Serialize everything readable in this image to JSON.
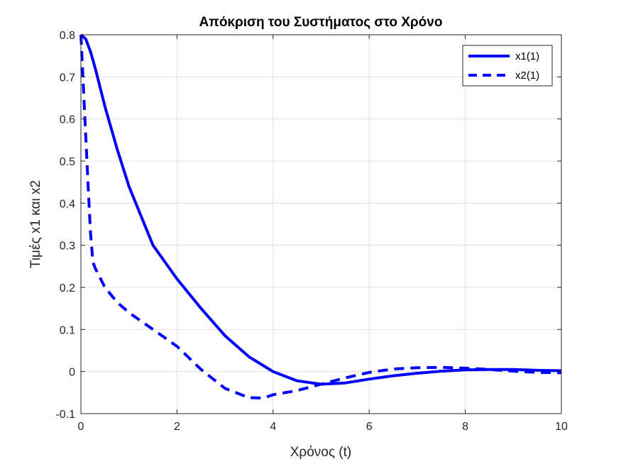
{
  "chart_data": {
    "type": "line",
    "title": "Απόκριση του Συστήματος στο Χρόνο",
    "xlabel": "Χρόνος (t)",
    "ylabel": "Τιμές x1 και x2",
    "xlim": [
      0,
      10
    ],
    "ylim": [
      -0.1,
      0.8
    ],
    "xticks": [
      0,
      2,
      4,
      6,
      8,
      10
    ],
    "yticks": [
      -0.1,
      0,
      0.1,
      0.2,
      0.3,
      0.4,
      0.5,
      0.6,
      0.7,
      0.8
    ],
    "xtick_labels": [
      "0",
      "2",
      "4",
      "6",
      "8",
      "10"
    ],
    "ytick_labels": [
      "-0.1",
      "0",
      "0.1",
      "0.2",
      "0.3",
      "0.4",
      "0.5",
      "0.6",
      "0.7",
      "0.8"
    ],
    "grid": true,
    "legend_position": "top-right",
    "series": [
      {
        "name": "x1(1)",
        "style": "solid",
        "color": "#0000ff",
        "x": [
          0,
          0.1,
          0.2,
          0.3,
          0.5,
          0.75,
          1.0,
          1.25,
          1.5,
          1.75,
          2.0,
          2.5,
          3.0,
          3.5,
          4.0,
          4.5,
          5.0,
          5.5,
          6.0,
          6.5,
          7.0,
          7.5,
          8.0,
          8.5,
          9.0,
          9.5,
          10.0
        ],
        "y": [
          0.8,
          0.79,
          0.76,
          0.72,
          0.63,
          0.53,
          0.44,
          0.37,
          0.3,
          0.26,
          0.22,
          0.15,
          0.085,
          0.035,
          0.0,
          -0.022,
          -0.03,
          -0.027,
          -0.018,
          -0.01,
          -0.004,
          0.001,
          0.004,
          0.005,
          0.005,
          0.003,
          0.002
        ]
      },
      {
        "name": "x2(1)",
        "style": "dashed",
        "color": "#0000ff",
        "x": [
          0,
          0.02,
          0.05,
          0.1,
          0.15,
          0.2,
          0.25,
          0.3,
          0.5,
          0.75,
          1.0,
          1.5,
          2.0,
          2.5,
          3.0,
          3.5,
          3.8,
          4.0,
          4.5,
          5.0,
          5.5,
          6.0,
          6.5,
          7.0,
          7.5,
          8.0,
          8.5,
          9.0,
          9.5,
          10.0
        ],
        "y": [
          0.8,
          0.75,
          0.68,
          0.56,
          0.44,
          0.33,
          0.26,
          0.245,
          0.2,
          0.165,
          0.14,
          0.1,
          0.06,
          0.005,
          -0.04,
          -0.062,
          -0.063,
          -0.055,
          -0.045,
          -0.03,
          -0.015,
          -0.002,
          0.006,
          0.009,
          0.01,
          0.008,
          0.005,
          0.001,
          -0.002,
          -0.003
        ]
      }
    ]
  }
}
